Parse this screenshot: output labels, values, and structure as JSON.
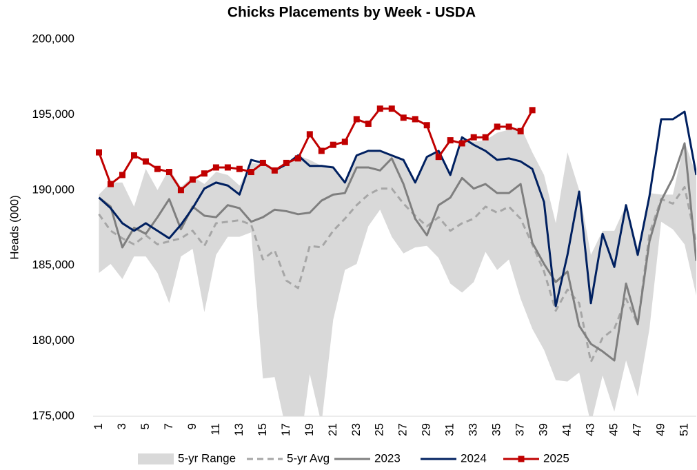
{
  "chart_data": {
    "type": "line",
    "title": "Chicks Placements by Week - USDA",
    "y_label": "Heads (000)",
    "x": [
      1,
      2,
      3,
      4,
      5,
      6,
      7,
      8,
      9,
      10,
      11,
      12,
      13,
      14,
      15,
      16,
      17,
      18,
      19,
      20,
      21,
      22,
      23,
      24,
      25,
      26,
      27,
      28,
      29,
      30,
      31,
      32,
      33,
      34,
      35,
      36,
      37,
      38,
      39,
      40,
      41,
      42,
      43,
      44,
      45,
      46,
      47,
      48,
      49,
      50,
      51,
      52
    ],
    "xlim": [
      0.5,
      52
    ],
    "xticks": [
      1,
      3,
      5,
      7,
      9,
      11,
      13,
      15,
      17,
      19,
      21,
      23,
      25,
      27,
      29,
      31,
      33,
      35,
      37,
      39,
      41,
      43,
      45,
      47,
      49,
      51
    ],
    "ylim": [
      175000,
      200000
    ],
    "yticks": [
      {
        "value": 175000,
        "label": "175,000"
      },
      {
        "value": 180000,
        "label": "180,000"
      },
      {
        "value": 185000,
        "label": "185,000"
      },
      {
        "value": 190000,
        "label": "190,000"
      },
      {
        "value": 195000,
        "label": "195,000"
      },
      {
        "value": 200000,
        "label": "200,000"
      }
    ],
    "grid": false,
    "legend": "bottom",
    "series": [
      {
        "name": "5-yr Range",
        "kind": "range",
        "color": "#d9d9d9",
        "low": [
          184500,
          185100,
          184100,
          185600,
          185600,
          184500,
          182500,
          185600,
          186100,
          181900,
          185700,
          186900,
          186900,
          187200,
          177500,
          177600,
          174000,
          172000,
          177800,
          174500,
          181400,
          184700,
          185100,
          187600,
          188700,
          186900,
          185800,
          186200,
          186300,
          185500,
          183800,
          183200,
          183900,
          185900,
          184700,
          185400,
          182800,
          180800,
          179400,
          177400,
          177300,
          177900,
          174500,
          177700,
          175300,
          178700,
          176300,
          180800,
          187900,
          187400,
          186400,
          183000
        ],
        "high": [
          189700,
          190500,
          190500,
          188900,
          191400,
          190000,
          191400,
          190200,
          190900,
          190400,
          191200,
          191000,
          190300,
          191800,
          191700,
          191400,
          191800,
          192300,
          192000,
          191600,
          191600,
          190600,
          192300,
          192600,
          192600,
          192300,
          192100,
          190600,
          192200,
          192600,
          191100,
          193400,
          193200,
          193300,
          193800,
          194000,
          194200,
          192500,
          191000,
          187800,
          192500,
          190000,
          185700,
          187300,
          187300,
          189000,
          186200,
          189800,
          189700,
          189700,
          193200,
          191000
        ]
      },
      {
        "name": "5-yr Avg",
        "kind": "line",
        "dash": true,
        "color": "#a6a6a6",
        "values": [
          188400,
          187300,
          186800,
          186400,
          187000,
          186400,
          186600,
          186800,
          187300,
          186300,
          187800,
          187900,
          188000,
          187700,
          185400,
          186000,
          184000,
          183500,
          186300,
          186200,
          187300,
          188100,
          189000,
          189700,
          190100,
          190100,
          189100,
          188300,
          187600,
          188200,
          187300,
          187800,
          188100,
          188900,
          188500,
          188900,
          188100,
          186400,
          184600,
          182000,
          183400,
          182500,
          178600,
          180200,
          180800,
          182800,
          181100,
          187100,
          189400,
          189100,
          190200,
          186500
        ]
      },
      {
        "name": "2023",
        "kind": "line",
        "color": "#7f7f7f",
        "values": [
          189500,
          188900,
          186200,
          187500,
          187100,
          188200,
          189400,
          187400,
          188900,
          188300,
          188200,
          189000,
          188800,
          187900,
          188200,
          188700,
          188600,
          188400,
          188500,
          189300,
          189700,
          189800,
          191500,
          191500,
          191300,
          192100,
          190400,
          188100,
          187000,
          189000,
          189500,
          190800,
          190100,
          190400,
          189800,
          189800,
          190400,
          186500,
          185100,
          183900,
          184600,
          181000,
          179800,
          179300,
          178700,
          183800,
          181100,
          186600,
          189300,
          190800,
          193100,
          185300
        ]
      },
      {
        "name": "2024",
        "kind": "line",
        "color": "#002060",
        "values": [
          189500,
          188800,
          187800,
          187300,
          187800,
          187300,
          186800,
          187700,
          188800,
          190100,
          190500,
          190300,
          189700,
          192000,
          191800,
          191300,
          191700,
          192300,
          191600,
          191600,
          191500,
          190500,
          192300,
          192600,
          192600,
          192300,
          192000,
          190500,
          192200,
          192600,
          191000,
          193500,
          193000,
          192600,
          192000,
          192100,
          191900,
          191400,
          189200,
          182300,
          185700,
          189900,
          182500,
          187100,
          184900,
          189000,
          185700,
          189600,
          194700,
          194700,
          195200,
          191000
        ]
      },
      {
        "name": "2025",
        "kind": "line",
        "marker": "square",
        "color": "#c00000",
        "values": [
          192500,
          190400,
          191000,
          192300,
          191900,
          191400,
          191200,
          190000,
          190700,
          191100,
          191500,
          191500,
          191400,
          191200,
          191800,
          191300,
          191800,
          192100,
          193700,
          192600,
          193000,
          193200,
          194700,
          194400,
          195400,
          195400,
          194800,
          194700,
          194300,
          192200,
          193300,
          193100,
          193500,
          193500,
          194200,
          194200,
          193900,
          195300,
          null,
          null,
          null,
          null,
          null,
          null,
          null,
          null,
          null,
          null,
          null,
          null,
          null,
          null
        ]
      }
    ]
  }
}
